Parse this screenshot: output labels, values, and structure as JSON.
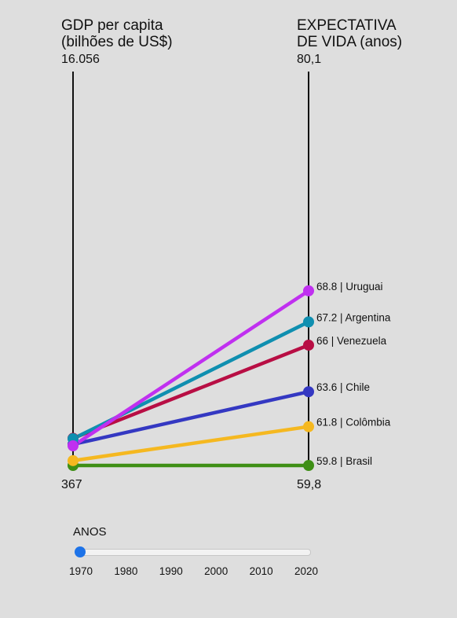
{
  "left_axis": {
    "title": "GDP per capita\n(bilhões de US$)",
    "top_label": "16.056",
    "bottom_label": "367",
    "max": 16056,
    "min": 367
  },
  "right_axis": {
    "title": "EXPECTATIVA\nDE VIDA (anos)",
    "top_label": "80,1",
    "bottom_label": "59,8",
    "max": 80.1,
    "min": 59.8
  },
  "chart_data": {
    "type": "line",
    "year": "1970",
    "series": [
      {
        "name": "Uruguai",
        "gdp": 1150,
        "life": 68.8,
        "label": "68.8 | Uruguai",
        "color": "#c030f0"
      },
      {
        "name": "Argentina",
        "gdp": 1430,
        "life": 67.2,
        "label": "67.2 | Argentina",
        "color": "#0f8fb0"
      },
      {
        "name": "Venezuela",
        "gdp": 1450,
        "life": 66.0,
        "label": "66 | Venezuela",
        "color": "#b80e44"
      },
      {
        "name": "Chile",
        "gdp": 1210,
        "life": 63.6,
        "label": "63.6 | Chile",
        "color": "#3438c2"
      },
      {
        "name": "Colômbia",
        "gdp": 560,
        "life": 61.8,
        "label": "61.8 | Colômbia",
        "color": "#f5b820"
      },
      {
        "name": "Brasil",
        "gdp": 367,
        "life": 59.8,
        "label": "59.8 | Brasil",
        "color": "#3e8f15"
      }
    ]
  },
  "slider": {
    "label": "ANOS",
    "years": [
      "1970",
      "1980",
      "1990",
      "2000",
      "2010",
      "2020"
    ],
    "value": "1970",
    "accent": "#1e73e8"
  }
}
